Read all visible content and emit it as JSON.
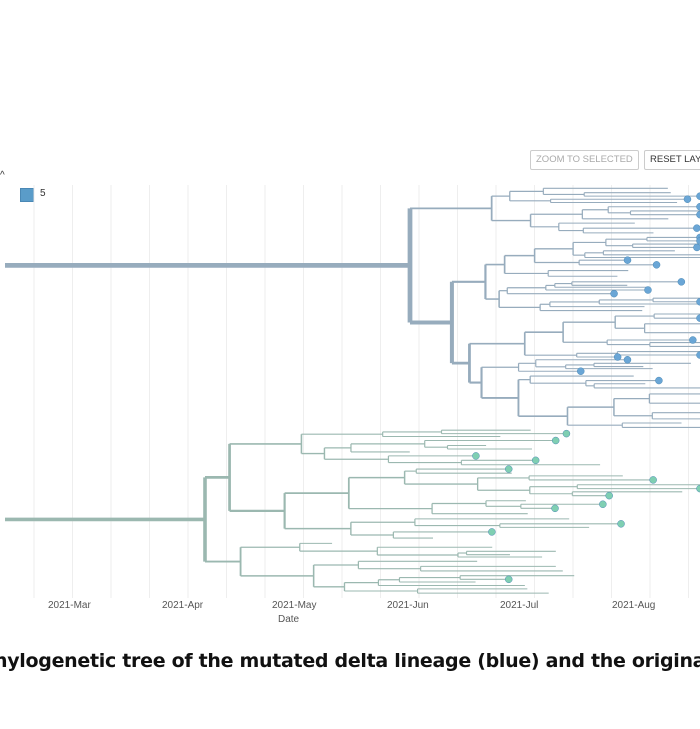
{
  "toolbar": {
    "zoom_to_selected": "ZOOM TO SELECTED",
    "reset_layout": "RESET LAYOUT"
  },
  "legend": {
    "toggle_icon": "chevron-up-icon",
    "items": [
      {
        "label": "5",
        "color": "#5a9cc9"
      }
    ]
  },
  "axis": {
    "title": "Date",
    "ticks": [
      "2021-Mar",
      "2021-Apr",
      "2021-May",
      "2021-Jun",
      "2021-Jul",
      "2021-Aug"
    ]
  },
  "colors": {
    "mutated_branch": "#97acbd",
    "mutated_tip": "#6aa6d6",
    "original_branch": "#9bb8b0",
    "original_tip": "#7fcfb2"
  },
  "caption": "hylogenetic tree of the mutated delta lineage (blue) and the original"
}
